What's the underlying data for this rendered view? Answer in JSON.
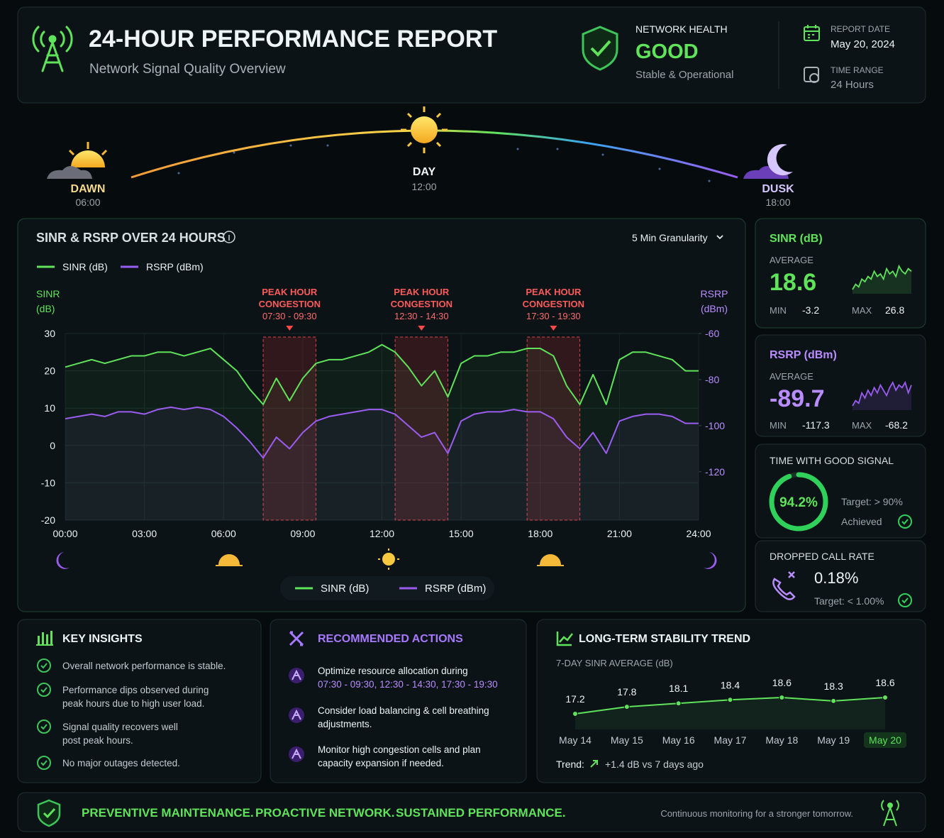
{
  "header": {
    "title": "24-HOUR PERFORMANCE REPORT",
    "subtitle": "Network Signal Quality Overview",
    "health_label": "NETWORK HEALTH",
    "health_value": "GOOD",
    "health_note": "Stable & Operational",
    "report_date_label": "REPORT DATE",
    "report_date": "May 20, 2024",
    "time_range_label": "TIME RANGE",
    "time_range": "24 Hours"
  },
  "timeline": [
    {
      "label": "DAWN",
      "time": "06:00"
    },
    {
      "label": "DAY",
      "time": "12:00"
    },
    {
      "label": "DUSK",
      "time": "18:00"
    }
  ],
  "chart_data": [
    {
      "type": "line",
      "title": "SINR & RSRP OVER 24 HOURS",
      "granularity": "5 Min Granularity",
      "ylabel": [
        "SINR",
        "(dB)"
      ],
      "y2label": [
        "RSRP",
        "(dBm)"
      ],
      "x": [
        0,
        0.5,
        1,
        1.5,
        2,
        2.5,
        3,
        3.5,
        4,
        4.5,
        5,
        5.5,
        6,
        6.5,
        7,
        7.5,
        8,
        8.5,
        9,
        9.5,
        10,
        10.5,
        11,
        11.5,
        12,
        12.5,
        13,
        13.5,
        14,
        14.5,
        15,
        15.5,
        16,
        16.5,
        17,
        17.5,
        18,
        18.5,
        19,
        19.5,
        20,
        20.5,
        21,
        21.5,
        22,
        22.5,
        23,
        23.5,
        24
      ],
      "xlim": [
        0,
        24
      ],
      "xticks": [
        {
          "value": 0,
          "label": "00:00"
        },
        {
          "value": 3,
          "label": "03:00"
        },
        {
          "value": 6,
          "label": "06:00"
        },
        {
          "value": 9,
          "label": "09:00"
        },
        {
          "value": 12,
          "label": "12:00"
        },
        {
          "value": 15,
          "label": "15:00"
        },
        {
          "value": 18,
          "label": "18:00"
        },
        {
          "value": 21,
          "label": "21:00"
        },
        {
          "value": 24,
          "label": "24:00"
        }
      ],
      "ylim": [
        -20,
        30
      ],
      "yticks": [
        30,
        20,
        10,
        0,
        -10,
        -20
      ],
      "y2lim": [
        -141,
        -60
      ],
      "y2ticks": [
        -60,
        -80,
        -100,
        -120
      ],
      "grid": true,
      "series": [
        {
          "name": "SINR (dB)",
          "color": "#5fe35a",
          "values": [
            21,
            22,
            23,
            22,
            23,
            24,
            24,
            25,
            25,
            24,
            25,
            26,
            23,
            20,
            15,
            11,
            18,
            12,
            18,
            22,
            23,
            23,
            24,
            25,
            27,
            25,
            21,
            16,
            20,
            13,
            22,
            24,
            24,
            25,
            25,
            26,
            26,
            24,
            16,
            11,
            19,
            11,
            23,
            25,
            25,
            24,
            23,
            20,
            20
          ]
        },
        {
          "name": "RSRP (dBm)",
          "color": "#9b5cf0",
          "axis": "y2",
          "values": [
            -97,
            -96,
            -95,
            -96,
            -94,
            -94,
            -95,
            -93,
            -92,
            -93,
            -92,
            -93,
            -96,
            -101,
            -107,
            -114,
            -105,
            -110,
            -103,
            -98,
            -96,
            -95,
            -94,
            -93,
            -93,
            -95,
            -100,
            -105,
            -103,
            -112,
            -98,
            -95,
            -94,
            -94,
            -93,
            -94,
            -94,
            -97,
            -105,
            -110,
            -103,
            -112,
            -98,
            -96,
            -95,
            -95,
            -96,
            -99,
            -99
          ]
        }
      ],
      "annotations": [
        {
          "title": "PEAK HOUR",
          "subtitle": "CONGESTION",
          "range": "07:30 - 09:30",
          "xspan": [
            7.5,
            9.5
          ]
        },
        {
          "title": "PEAK HOUR",
          "subtitle": "CONGESTION",
          "range": "12:30 - 14:30",
          "xspan": [
            12.5,
            14.5
          ]
        },
        {
          "title": "PEAK HOUR",
          "subtitle": "CONGESTION",
          "range": "17:30 - 19:30",
          "xspan": [
            17.5,
            19.5
          ]
        }
      ]
    },
    {
      "type": "sparkline",
      "title": "SINR (dB)",
      "average_label": "AVERAGE",
      "average": 18.6,
      "min_label": "MIN",
      "min": -3.2,
      "max_label": "MAX",
      "max": 26.8,
      "color": "#5fe35a",
      "values": [
        15,
        17,
        16,
        19,
        18,
        20,
        19,
        22,
        20,
        21,
        19,
        23,
        21,
        22,
        20,
        24,
        22,
        21,
        23,
        22
      ]
    },
    {
      "type": "sparkline",
      "title": "RSRP (dBm)",
      "average_label": "AVERAGE",
      "average": -89.7,
      "min_label": "MIN",
      "min": -117.3,
      "max_label": "MAX",
      "max": -68.2,
      "color": "#9b5cf0",
      "values": [
        -95,
        -93,
        -94,
        -90,
        -92,
        -89,
        -91,
        -88,
        -90,
        -87,
        -89,
        -91,
        -88,
        -86,
        -89,
        -87,
        -88,
        -86,
        -90,
        -87
      ]
    },
    {
      "type": "gauge",
      "title": "TIME WITH GOOD SIGNAL",
      "value": 94.2,
      "value_label": "94.2%",
      "ylim": [
        0,
        100
      ],
      "target": "Target: > 90%",
      "status": "Achieved",
      "color": "#2fd15a"
    },
    {
      "type": "trend",
      "title": "LONG-TERM STABILITY TREND",
      "subtitle": "7-DAY SINR AVERAGE (dB)",
      "categories": [
        "May 14",
        "May 15",
        "May 16",
        "May 17",
        "May 18",
        "May 19",
        "May 20"
      ],
      "values": [
        17.2,
        17.8,
        18.1,
        18.4,
        18.6,
        18.3,
        18.6
      ],
      "color": "#5fe35a",
      "trend_label": "Trend:",
      "trend": "+1.4 dB vs 7 days ago"
    }
  ],
  "dropped_call": {
    "title": "DROPPED CALL RATE",
    "value": "0.18%",
    "target": "Target: < 1.00%"
  },
  "insights": {
    "title": "KEY INSIGHTS",
    "items": [
      [
        "Overall network performance is stable."
      ],
      [
        "Performance dips observed during",
        "peak hours due to high user load."
      ],
      [
        "Signal quality recovers well",
        "post peak hours."
      ],
      [
        "No major outages detected."
      ]
    ]
  },
  "actions": {
    "title": "RECOMMENDED ACTIONS",
    "items": [
      {
        "lines": [
          "Optimize resource allocation during"
        ],
        "highlight": "07:30 - 09:30, 12:30 - 14:30, 17:30 - 19:30"
      },
      {
        "lines": [
          "Consider load balancing & cell breathing",
          "adjustments."
        ]
      },
      {
        "lines": [
          "Monitor high congestion cells and plan",
          "capacity expansion if needed."
        ]
      }
    ]
  },
  "footer": {
    "slogans": [
      "PREVENTIVE MAINTENANCE.",
      "PROACTIVE NETWORK.",
      "SUSTAINED PERFORMANCE."
    ],
    "tagline": "Continuous monitoring for a stronger tomorrow."
  }
}
